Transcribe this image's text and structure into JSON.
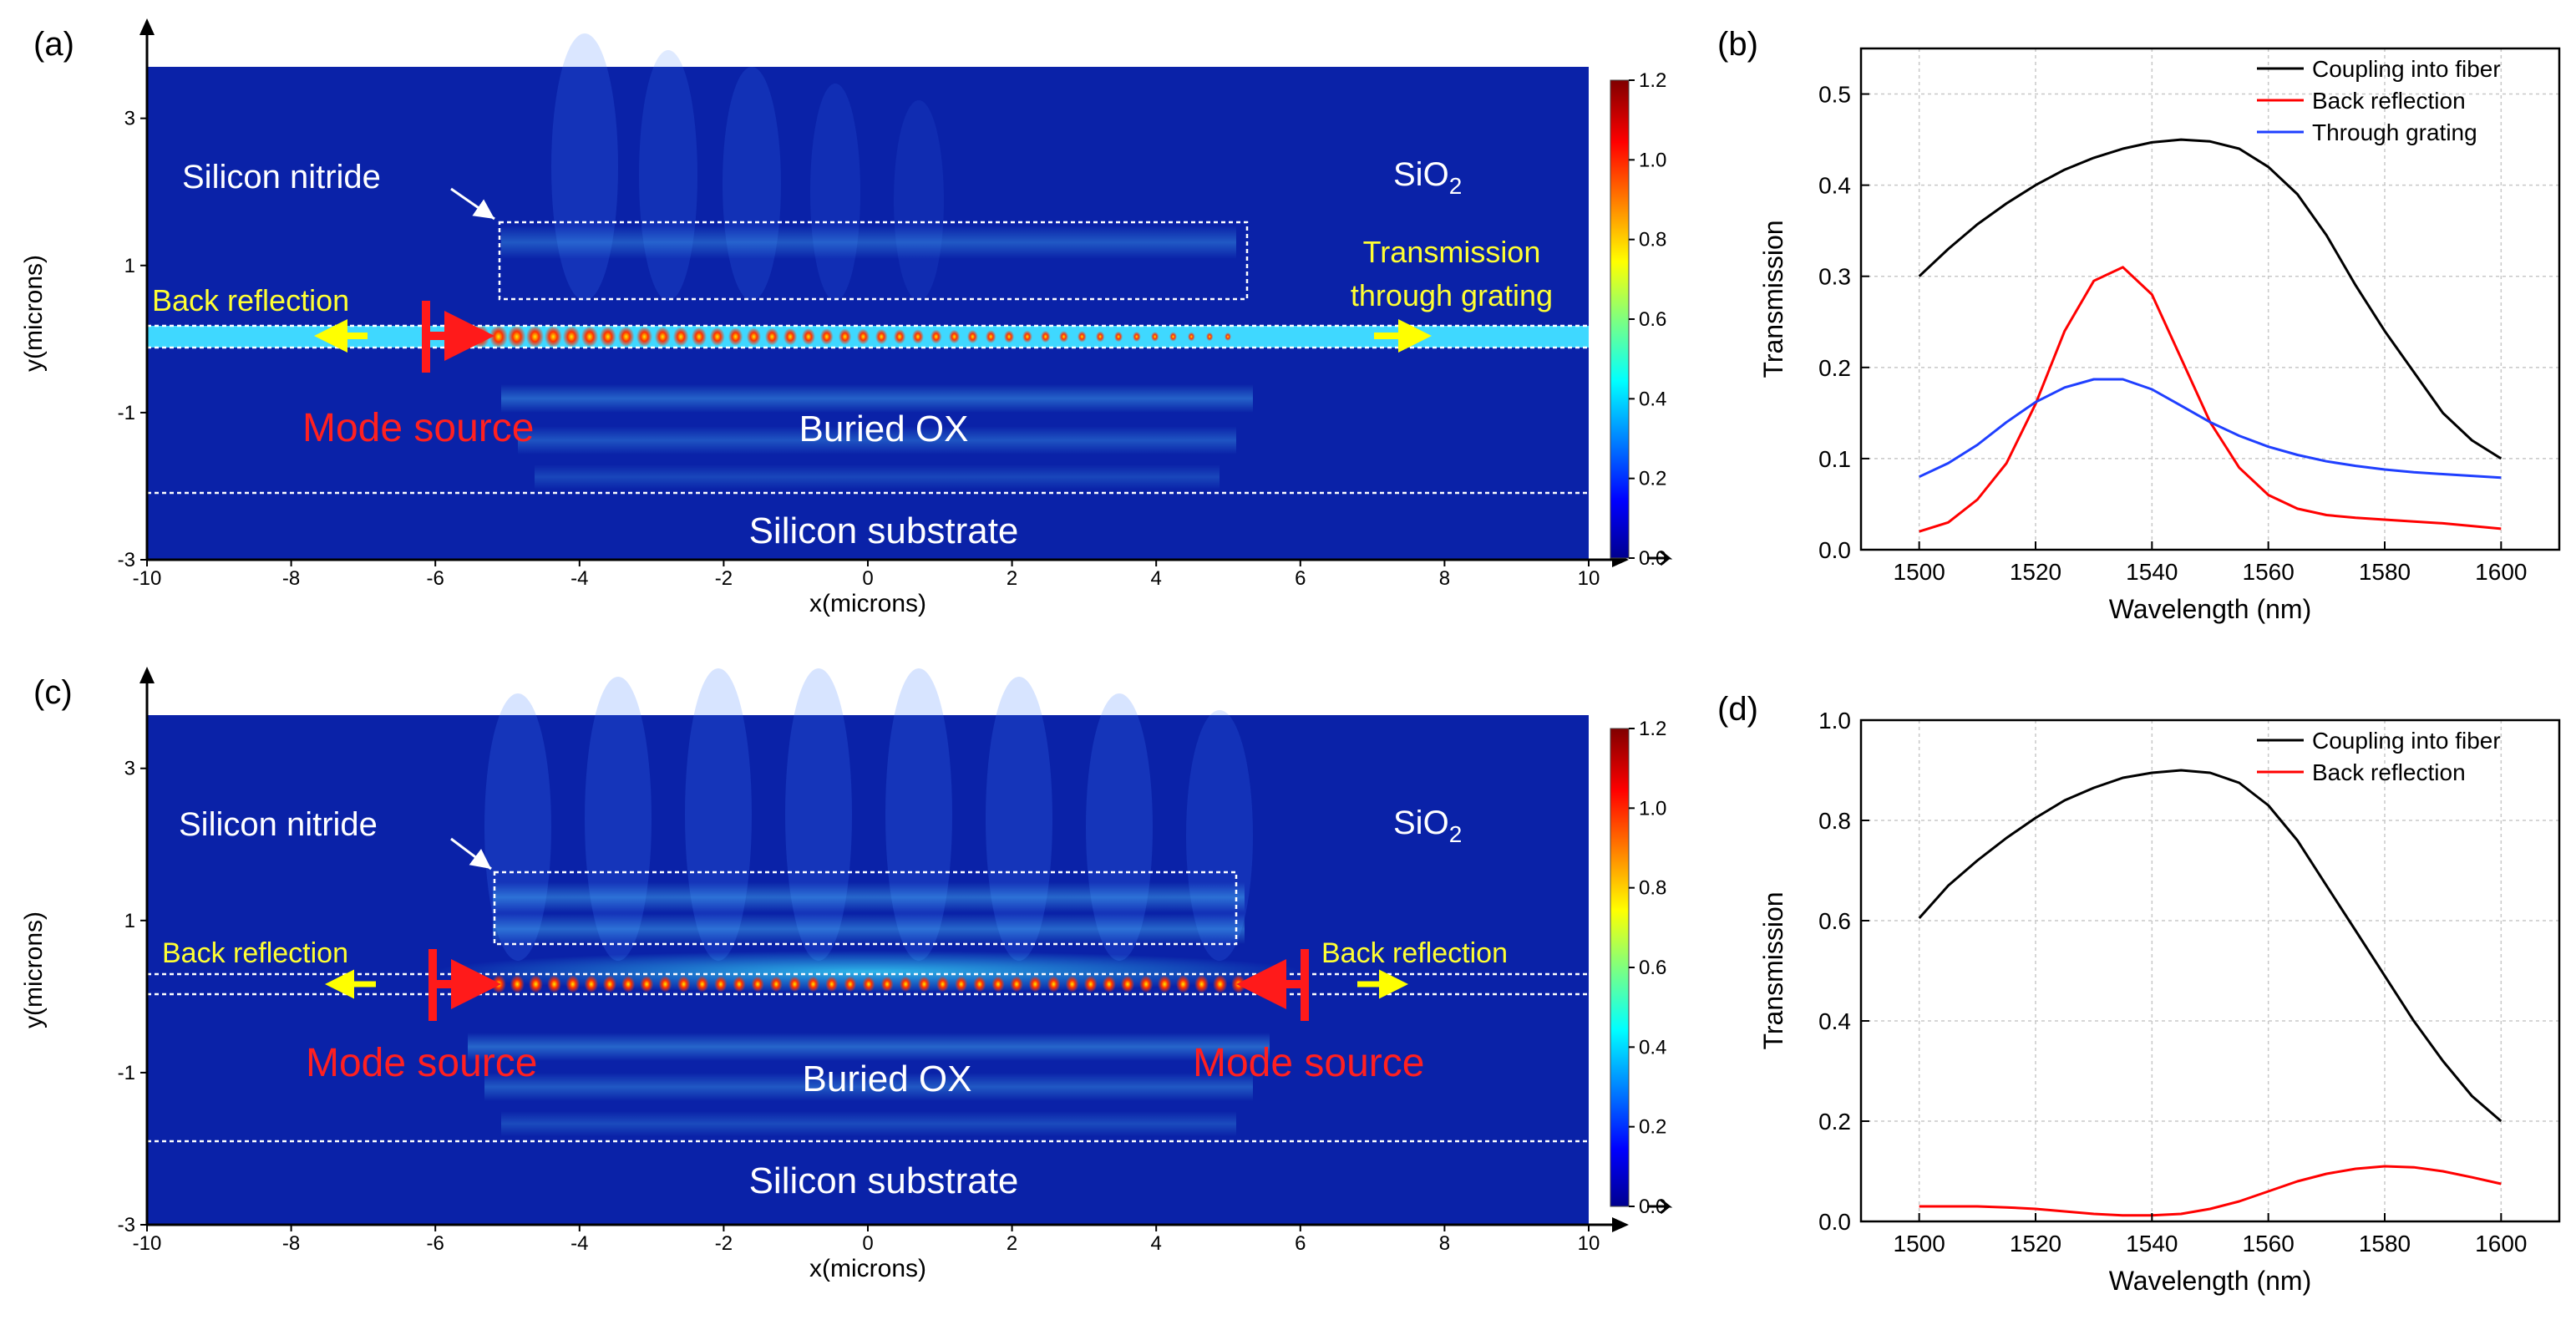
{
  "colors": {
    "field_bg": "#0a22a8",
    "field_dark": "#081a8c",
    "arrow_red": "#ff1a1a",
    "arrow_yellow": "#ffff00",
    "label_white": "#ffffff",
    "label_yellow": "#ffff33",
    "label_red": "#ff2020",
    "series_black": "#000000",
    "series_red": "#ff0000",
    "series_blue": "#1f3fff"
  },
  "chart_data": [
    {
      "panel": "a",
      "panel_label": "(a)",
      "type": "heatmap",
      "xlabel": "x(microns)",
      "ylabel": "y(microns)",
      "xlim": [
        -10,
        10
      ],
      "ylim": [
        -3,
        3.7
      ],
      "xticks": [
        -10,
        -8,
        -6,
        -4,
        -2,
        0,
        2,
        4,
        6,
        8,
        10
      ],
      "xtick_labels": [
        "-10",
        "-8",
        "-6",
        "-4",
        "-2",
        "0",
        "2",
        "4",
        "6",
        "8",
        "10"
      ],
      "yticks": [
        -3,
        -1,
        1,
        3
      ],
      "ytick_labels": [
        "-3",
        "-1",
        "1",
        "3"
      ],
      "colorbar": {
        "min": 0,
        "max": 1.2,
        "ticks": [
          "0.0",
          "0.2",
          "0.4",
          "0.6",
          "0.8",
          "1.0",
          "1.2"
        ]
      },
      "annotations": {
        "nitride": "Silicon nitride",
        "sio2_main": "SiO",
        "sio2_sub": "2",
        "back_reflection_left": "Back reflection",
        "transmission_line1": "Transmission",
        "transmission_line2": "through grating",
        "mode_source_left": "Mode source",
        "buried_ox": "Buried OX",
        "substrate": "Silicon substrate"
      },
      "structures": {
        "waveguide_y": [
          0.2,
          -0.05
        ],
        "nitride_box": {
          "x": [
            -5,
            5.2
          ],
          "y": [
            0.9,
            1.9
          ]
        },
        "substrate_y": -2,
        "source_x": [
          -6
        ]
      }
    },
    {
      "panel": "b",
      "panel_label": "(b)",
      "type": "line",
      "xlabel": "Wavelength (nm)",
      "ylabel": "Transmission",
      "xlim": [
        1490,
        1610
      ],
      "ylim": [
        0,
        0.55
      ],
      "xticks": [
        1500,
        1520,
        1540,
        1560,
        1580,
        1600
      ],
      "xtick_labels": [
        "1500",
        "1520",
        "1540",
        "1560",
        "1580",
        "1600"
      ],
      "yticks": [
        0,
        0.1,
        0.2,
        0.3,
        0.4,
        0.5
      ],
      "ytick_labels": [
        "0.0",
        "0.1",
        "0.2",
        "0.3",
        "0.4",
        "0.5"
      ],
      "grid": true,
      "legend": "top-right",
      "x": [
        1500,
        1505,
        1510,
        1515,
        1520,
        1525,
        1530,
        1535,
        1540,
        1545,
        1550,
        1555,
        1560,
        1565,
        1570,
        1575,
        1580,
        1585,
        1590,
        1595,
        1600
      ],
      "series": [
        {
          "name": "Coupling into fiber",
          "color": "#000000",
          "values": [
            0.3,
            0.33,
            0.357,
            0.38,
            0.4,
            0.417,
            0.43,
            0.44,
            0.447,
            0.45,
            0.448,
            0.44,
            0.42,
            0.39,
            0.345,
            0.29,
            0.24,
            0.195,
            0.15,
            0.12,
            0.1
          ]
        },
        {
          "name": "Back reflection",
          "color": "#ff0000",
          "values": [
            0.02,
            0.03,
            0.055,
            0.095,
            0.16,
            0.24,
            0.295,
            0.31,
            0.28,
            0.21,
            0.14,
            0.09,
            0.06,
            0.045,
            0.038,
            0.035,
            0.033,
            0.031,
            0.029,
            0.026,
            0.023
          ]
        },
        {
          "name": "Through grating",
          "color": "#1f3fff",
          "values": [
            0.08,
            0.095,
            0.115,
            0.14,
            0.162,
            0.178,
            0.187,
            0.187,
            0.176,
            0.158,
            0.14,
            0.125,
            0.113,
            0.104,
            0.097,
            0.092,
            0.088,
            0.085,
            0.083,
            0.081,
            0.079
          ]
        }
      ]
    },
    {
      "panel": "c",
      "panel_label": "(c)",
      "type": "heatmap",
      "xlabel": "x(microns)",
      "ylabel": "y(microns)",
      "xlim": [
        -10,
        10
      ],
      "ylim": [
        -3,
        3.7
      ],
      "xticks": [
        -10,
        -8,
        -6,
        -4,
        -2,
        0,
        2,
        4,
        6,
        8,
        10
      ],
      "xtick_labels": [
        "-10",
        "-8",
        "-6",
        "-4",
        "-2",
        "0",
        "2",
        "4",
        "6",
        "8",
        "10"
      ],
      "yticks": [
        -3,
        -1,
        1,
        3
      ],
      "ytick_labels": [
        "-3",
        "-1",
        "1",
        "3"
      ],
      "colorbar": {
        "min": 0,
        "max": 1.2,
        "ticks": [
          "0.0",
          "0.2",
          "0.4",
          "0.6",
          "0.8",
          "1.0",
          "1.2"
        ]
      },
      "annotations": {
        "nitride": "Silicon nitride",
        "sio2_main": "SiO",
        "sio2_sub": "2",
        "back_reflection_left": "Back reflection",
        "back_reflection_right": "Back reflection",
        "mode_source_left": "Mode source",
        "mode_source_right": "Mode source",
        "buried_ox": "Buried OX",
        "substrate": "Silicon substrate"
      },
      "structures": {
        "waveguide_y": [
          0.2,
          -0.05
        ],
        "nitride_box": {
          "x": [
            -5.2,
            5
          ],
          "y": [
            0.5,
            1.6
          ]
        },
        "substrate_y": -2,
        "source_x": [
          -6,
          6
        ]
      }
    },
    {
      "panel": "d",
      "panel_label": "(d)",
      "type": "line",
      "xlabel": "Wavelength (nm)",
      "ylabel": "Transmission",
      "xlim": [
        1490,
        1610
      ],
      "ylim": [
        0,
        1.0
      ],
      "xticks": [
        1500,
        1520,
        1540,
        1560,
        1580,
        1600
      ],
      "xtick_labels": [
        "1500",
        "1520",
        "1540",
        "1560",
        "1580",
        "1600"
      ],
      "yticks": [
        0,
        0.2,
        0.4,
        0.6,
        0.8,
        1.0
      ],
      "ytick_labels": [
        "0.0",
        "0.2",
        "0.4",
        "0.6",
        "0.8",
        "1.0"
      ],
      "grid": true,
      "legend": "top-right",
      "x": [
        1500,
        1505,
        1510,
        1515,
        1520,
        1525,
        1530,
        1535,
        1540,
        1545,
        1550,
        1555,
        1560,
        1565,
        1570,
        1575,
        1580,
        1585,
        1590,
        1595,
        1600
      ],
      "series": [
        {
          "name": "Coupling into fiber",
          "color": "#000000",
          "values": [
            0.605,
            0.67,
            0.72,
            0.765,
            0.805,
            0.84,
            0.865,
            0.885,
            0.895,
            0.9,
            0.895,
            0.875,
            0.83,
            0.76,
            0.67,
            0.58,
            0.49,
            0.4,
            0.32,
            0.25,
            0.2
          ]
        },
        {
          "name": "Back reflection",
          "color": "#ff0000",
          "values": [
            0.03,
            0.03,
            0.03,
            0.028,
            0.025,
            0.02,
            0.015,
            0.012,
            0.012,
            0.015,
            0.025,
            0.04,
            0.06,
            0.08,
            0.095,
            0.105,
            0.11,
            0.108,
            0.1,
            0.088,
            0.075
          ]
        }
      ]
    }
  ]
}
